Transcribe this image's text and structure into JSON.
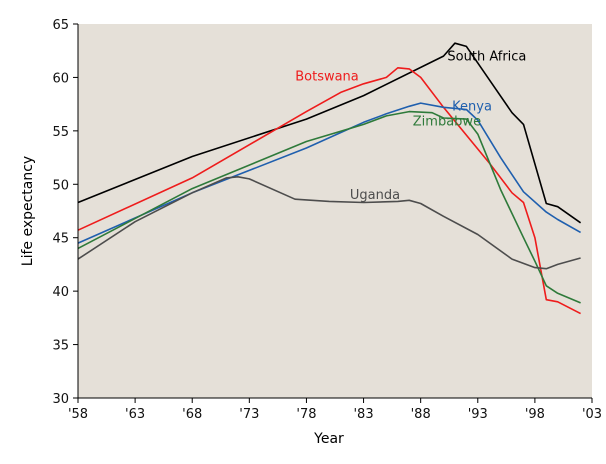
{
  "chart_data": {
    "type": "line",
    "xlabel": "Year",
    "ylabel": "Life expectancy",
    "xlim": [
      1958,
      2003
    ],
    "ylim": [
      30,
      65
    ],
    "x_ticks": [
      {
        "value": 1958,
        "label": "'58"
      },
      {
        "value": 1963,
        "label": "'63"
      },
      {
        "value": 1968,
        "label": "'68"
      },
      {
        "value": 1973,
        "label": "'73"
      },
      {
        "value": 1978,
        "label": "'78"
      },
      {
        "value": 1983,
        "label": "'83"
      },
      {
        "value": 1988,
        "label": "'88"
      },
      {
        "value": 1993,
        "label": "'93"
      },
      {
        "value": 1998,
        "label": "'98"
      },
      {
        "value": 2003,
        "label": "'03"
      }
    ],
    "y_ticks": [
      {
        "value": 30,
        "label": "30"
      },
      {
        "value": 35,
        "label": "35"
      },
      {
        "value": 40,
        "label": "40"
      },
      {
        "value": 45,
        "label": "45"
      },
      {
        "value": 50,
        "label": "50"
      },
      {
        "value": 55,
        "label": "55"
      },
      {
        "value": 60,
        "label": "60"
      },
      {
        "value": 65,
        "label": "65"
      }
    ],
    "grid": false,
    "background": "#e5e0d8",
    "series": [
      {
        "name": "South Africa",
        "color": "#000000",
        "label_at": [
          1993.8,
          61.6
        ],
        "points": [
          [
            1958,
            48.3
          ],
          [
            1968,
            52.6
          ],
          [
            1978,
            56.1
          ],
          [
            1983,
            58.3
          ],
          [
            1990,
            62.0
          ],
          [
            1991,
            63.2
          ],
          [
            1992,
            62.9
          ],
          [
            1994,
            59.8
          ],
          [
            1996,
            56.7
          ],
          [
            1997,
            55.6
          ],
          [
            1999,
            48.2
          ],
          [
            2000,
            47.9
          ],
          [
            2002,
            46.4
          ]
        ]
      },
      {
        "name": "Botswana",
        "color": "#ee1c1c",
        "label_at": [
          1979.8,
          59.7
        ],
        "points": [
          [
            1958,
            45.7
          ],
          [
            1968,
            50.6
          ],
          [
            1978,
            56.8
          ],
          [
            1981,
            58.6
          ],
          [
            1983,
            59.4
          ],
          [
            1985,
            60.0
          ],
          [
            1986,
            60.9
          ],
          [
            1987,
            60.8
          ],
          [
            1988,
            60.0
          ],
          [
            1990,
            57.2
          ],
          [
            1994,
            52.0
          ],
          [
            1996,
            49.2
          ],
          [
            1997,
            48.3
          ],
          [
            1998,
            45.0
          ],
          [
            1999,
            39.2
          ],
          [
            2000,
            39.0
          ],
          [
            2002,
            37.9
          ]
        ]
      },
      {
        "name": "Kenya",
        "color": "#1f5fae",
        "label_at": [
          1992.5,
          56.9
        ],
        "points": [
          [
            1958,
            44.5
          ],
          [
            1968,
            49.2
          ],
          [
            1978,
            53.4
          ],
          [
            1983,
            55.8
          ],
          [
            1985,
            56.6
          ],
          [
            1987,
            57.3
          ],
          [
            1988,
            57.6
          ],
          [
            1990,
            57.2
          ],
          [
            1992,
            57.0
          ],
          [
            1993,
            56.0
          ],
          [
            1995,
            52.5
          ],
          [
            1997,
            49.3
          ],
          [
            1999,
            47.4
          ],
          [
            2000,
            46.7
          ],
          [
            2002,
            45.5
          ]
        ]
      },
      {
        "name": "Zimbabwe",
        "color": "#2e7a3a",
        "label_at": [
          1990.3,
          55.5
        ],
        "points": [
          [
            1958,
            44.0
          ],
          [
            1968,
            49.6
          ],
          [
            1978,
            54.0
          ],
          [
            1983,
            55.6
          ],
          [
            1985,
            56.4
          ],
          [
            1987,
            56.8
          ],
          [
            1989,
            56.7
          ],
          [
            1990,
            56.2
          ],
          [
            1992,
            56.1
          ],
          [
            1993,
            54.7
          ],
          [
            1995,
            49.5
          ],
          [
            1997,
            45.0
          ],
          [
            1998,
            42.8
          ],
          [
            1999,
            40.5
          ],
          [
            2000,
            39.8
          ],
          [
            2002,
            38.9
          ]
        ]
      },
      {
        "name": "Uganda",
        "color": "#4d4d4d",
        "label_at": [
          1984.0,
          48.6
        ],
        "points": [
          [
            1958,
            43.0
          ],
          [
            1963,
            46.5
          ],
          [
            1968,
            49.2
          ],
          [
            1971,
            50.6
          ],
          [
            1972,
            50.7
          ],
          [
            1973,
            50.5
          ],
          [
            1977,
            48.6
          ],
          [
            1980,
            48.4
          ],
          [
            1983,
            48.3
          ],
          [
            1986,
            48.4
          ],
          [
            1987,
            48.5
          ],
          [
            1988,
            48.2
          ],
          [
            1990,
            47.0
          ],
          [
            1993,
            45.3
          ],
          [
            1996,
            43.0
          ],
          [
            1998,
            42.2
          ],
          [
            1999,
            42.1
          ],
          [
            2000,
            42.5
          ],
          [
            2002,
            43.1
          ]
        ]
      }
    ]
  }
}
